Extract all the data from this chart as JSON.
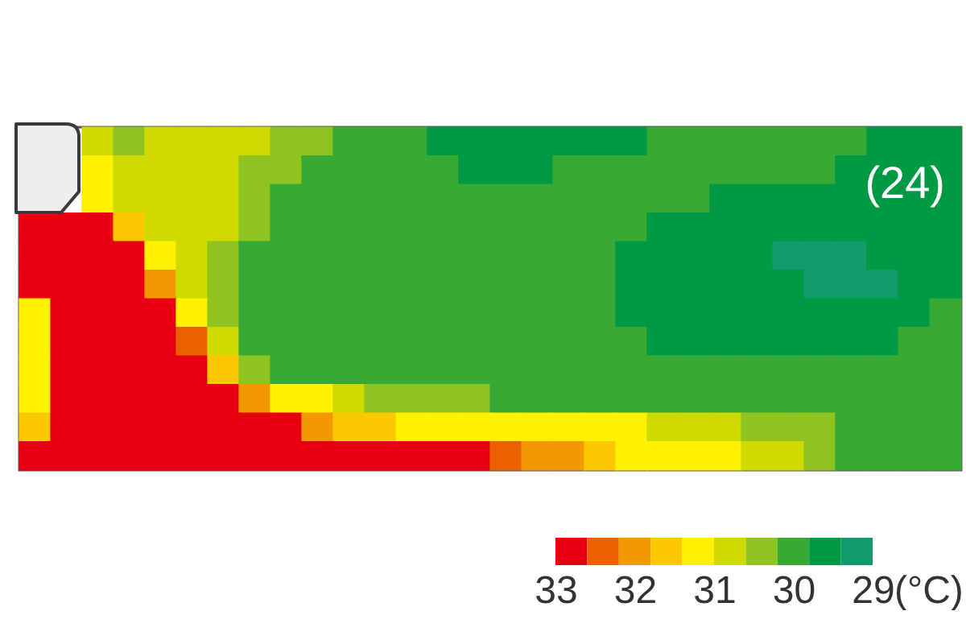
{
  "chart_data": {
    "type": "heatmap",
    "categories": [
      null,
      null,
      null,
      null,
      null,
      null,
      null,
      null,
      null,
      null,
      null,
      null,
      null,
      null,
      null,
      null,
      null,
      null,
      null,
      null,
      null,
      null,
      null,
      null,
      null,
      null,
      null,
      null,
      null,
      null
    ],
    "y_categories": [
      null,
      null,
      null,
      null,
      null,
      null,
      null,
      null,
      null,
      null,
      null,
      null
    ],
    "cells": [
      [
        null,
        null,
        30.8,
        30.4,
        30.8,
        30.8,
        30.8,
        30.8,
        30.4,
        30.4,
        30,
        30,
        30,
        29.6,
        29.6,
        29.6,
        29.6,
        29.6,
        29.6,
        29.6,
        30,
        30,
        30,
        30,
        30,
        30,
        30,
        29.6,
        29.6,
        29.6
      ],
      [
        null,
        null,
        31.2,
        30.8,
        30.8,
        30.8,
        30.8,
        30.4,
        30.4,
        30,
        30,
        30,
        30,
        30,
        29.6,
        29.6,
        29.6,
        30,
        30,
        30,
        30,
        30,
        30,
        30,
        30,
        30,
        29.6,
        29.6,
        29.6,
        29.6
      ],
      [
        null,
        null,
        31.2,
        30.8,
        30.8,
        30.8,
        30.8,
        30.4,
        30,
        30,
        30,
        30,
        30,
        30,
        30,
        30,
        30,
        30,
        30,
        30,
        30,
        30,
        29.6,
        29.6,
        29.6,
        29.6,
        29.6,
        29.6,
        29.6,
        29.6
      ],
      [
        32.8,
        32.8,
        32.8,
        31.6,
        30.8,
        30.8,
        30.8,
        30.4,
        30,
        30,
        30,
        30,
        30,
        30,
        30,
        30,
        30,
        30,
        30,
        30,
        29.6,
        29.6,
        29.6,
        29.6,
        29.6,
        29.6,
        29.6,
        29.6,
        29.6,
        29.6
      ],
      [
        32.8,
        32.8,
        32.8,
        32.8,
        31.2,
        30.8,
        30.4,
        30,
        30,
        30,
        30,
        30,
        30,
        30,
        30,
        30,
        30,
        30,
        30,
        29.6,
        29.6,
        29.6,
        29.6,
        29.6,
        29.2,
        29.2,
        29.2,
        29.6,
        29.6,
        29.6
      ],
      [
        32.8,
        32.8,
        32.8,
        32.8,
        32,
        30.8,
        30.4,
        30,
        30,
        30,
        30,
        30,
        30,
        30,
        30,
        30,
        30,
        30,
        30,
        29.6,
        29.6,
        29.6,
        29.6,
        29.6,
        29.6,
        29.2,
        29.2,
        29.2,
        29.6,
        29.6
      ],
      [
        31.2,
        32.8,
        32.8,
        32.8,
        32.8,
        31.2,
        30.4,
        30,
        30,
        30,
        30,
        30,
        30,
        30,
        30,
        30,
        30,
        30,
        30,
        29.6,
        29.6,
        29.6,
        29.6,
        29.6,
        29.6,
        29.6,
        29.6,
        29.6,
        29.6,
        30
      ],
      [
        31.2,
        32.8,
        32.8,
        32.8,
        32.8,
        32.4,
        30.8,
        30,
        30,
        30,
        30,
        30,
        30,
        30,
        30,
        30,
        30,
        30,
        30,
        30,
        29.6,
        29.6,
        29.6,
        29.6,
        29.6,
        29.6,
        29.6,
        29.6,
        30,
        30
      ],
      [
        31.2,
        32.8,
        32.8,
        32.8,
        32.8,
        32.8,
        31.6,
        30.4,
        30,
        30,
        30,
        30,
        30,
        30,
        30,
        30,
        30,
        30,
        30,
        30,
        30,
        30,
        30,
        30,
        30,
        30,
        30,
        30,
        30,
        30
      ],
      [
        31.2,
        32.8,
        32.8,
        32.8,
        32.8,
        32.8,
        32.8,
        32,
        31.2,
        31.2,
        30.8,
        30.4,
        30.4,
        30.4,
        30.4,
        30,
        30,
        30,
        30,
        30,
        30,
        30,
        30,
        30,
        30,
        30,
        30,
        30,
        30,
        30
      ],
      [
        31.6,
        32.8,
        32.8,
        32.8,
        32.8,
        32.8,
        32.8,
        32.8,
        32.8,
        32,
        31.6,
        31.6,
        31.2,
        31.2,
        31.2,
        31.2,
        31.2,
        31.2,
        31.2,
        31.2,
        30.8,
        30.8,
        30.8,
        30.4,
        30.4,
        30.4,
        30,
        30,
        30,
        30
      ],
      [
        32.8,
        32.8,
        32.8,
        32.8,
        32.8,
        32.8,
        32.8,
        32.8,
        32.8,
        32.8,
        32.8,
        32.8,
        32.8,
        32.8,
        32.8,
        32.4,
        32,
        32,
        31.6,
        31.2,
        31.2,
        31.2,
        31.2,
        30.8,
        30.8,
        30.4,
        30,
        30,
        30,
        30
      ]
    ],
    "clim": [
      33,
      29
    ],
    "cticks": [
      33,
      32,
      31,
      30,
      29
    ],
    "clabel": "(°C)",
    "colors": [
      "#e60012",
      "#eb6100",
      "#f39800",
      "#fcc800",
      "#fff100",
      "#cfdb00",
      "#8fc31f",
      "#39a935",
      "#009944",
      "#109b6b"
    ],
    "annotations": [
      "(24)"
    ],
    "tick_labels": false
  }
}
